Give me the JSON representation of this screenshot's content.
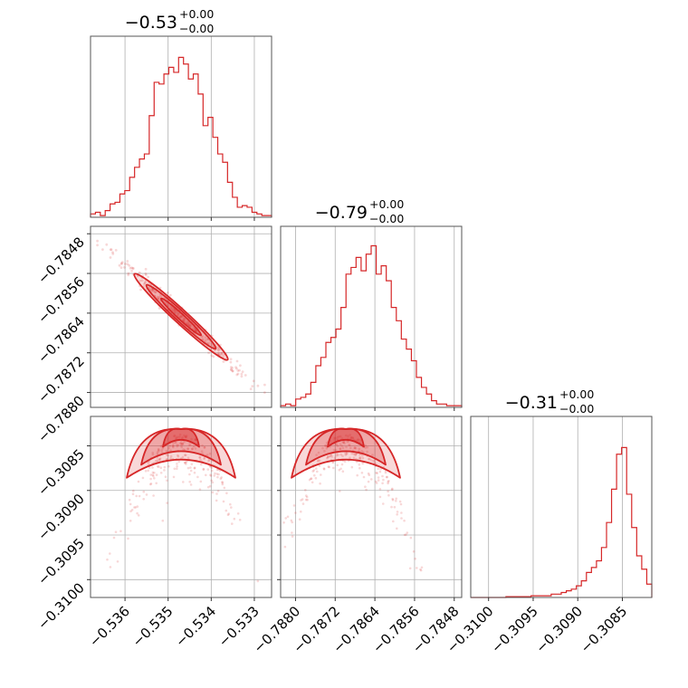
{
  "chart_data": {
    "type": "corner",
    "color": "#d62728",
    "grid": true,
    "parameters": [
      {
        "title": {
          "main": "−0.53",
          "upper": "+0.00",
          "lower": "−0.00"
        },
        "range": [
          -0.5368,
          -0.5326
        ],
        "ticks": [
          -0.536,
          -0.535,
          -0.534,
          -0.533
        ],
        "tick_labels": [
          "−0.536",
          "−0.535",
          "−0.534",
          "−0.533"
        ],
        "hist": [
          0.02,
          0.03,
          0.01,
          0.04,
          0.08,
          0.09,
          0.14,
          0.16,
          0.24,
          0.3,
          0.35,
          0.38,
          0.61,
          0.81,
          0.8,
          0.86,
          0.9,
          0.87,
          0.96,
          0.92,
          0.83,
          0.86,
          0.74,
          0.55,
          0.6,
          0.48,
          0.38,
          0.33,
          0.21,
          0.12,
          0.06,
          0.07,
          0.06,
          0.03,
          0.02,
          0.01,
          0.01
        ]
      },
      {
        "title": {
          "main": "−0.79",
          "upper": "+0.00",
          "lower": "−0.00"
        },
        "range": [
          -0.7883,
          -0.78465
        ],
        "ticks": [
          -0.788,
          -0.7872,
          -0.7864,
          -0.7856,
          -0.7848
        ],
        "tick_labels": [
          "−0.7880",
          "−0.7872",
          "−0.7864",
          "−0.7856",
          "−0.7848"
        ],
        "hist": [
          0.01,
          0.02,
          0.01,
          0.05,
          0.06,
          0.08,
          0.15,
          0.25,
          0.3,
          0.39,
          0.42,
          0.47,
          0.6,
          0.8,
          0.84,
          0.9,
          0.82,
          0.92,
          0.97,
          0.8,
          0.85,
          0.76,
          0.6,
          0.52,
          0.41,
          0.35,
          0.28,
          0.18,
          0.12,
          0.08,
          0.04,
          0.02,
          0.02,
          0.01,
          0.01,
          0.01
        ]
      },
      {
        "title": {
          "main": "−0.31",
          "upper": "+0.00",
          "lower": "−0.00"
        },
        "range": [
          -0.3102,
          -0.30817
        ],
        "ticks": [
          -0.31,
          -0.3095,
          -0.309,
          -0.3085
        ],
        "tick_labels": [
          "−0.3100",
          "−0.3095",
          "−0.3090",
          "−0.3085"
        ],
        "hist": [
          0,
          0,
          0,
          0,
          0,
          0,
          0,
          0.005,
          0.005,
          0.005,
          0.005,
          0.005,
          0.01,
          0.01,
          0.01,
          0.01,
          0.02,
          0.02,
          0.03,
          0.04,
          0.05,
          0.07,
          0.1,
          0.15,
          0.18,
          0.22,
          0.3,
          0.45,
          0.65,
          0.86,
          0.9,
          0.62,
          0.42,
          0.25,
          0.17,
          0.08
        ]
      }
    ],
    "correlations": {
      "1_0": {
        "slope": -0.92,
        "width": 0.05,
        "n": 300
      },
      "2_0": {
        "shape": "arc",
        "n": 260
      },
      "2_1": {
        "shape": "arc",
        "n": 260
      }
    }
  }
}
